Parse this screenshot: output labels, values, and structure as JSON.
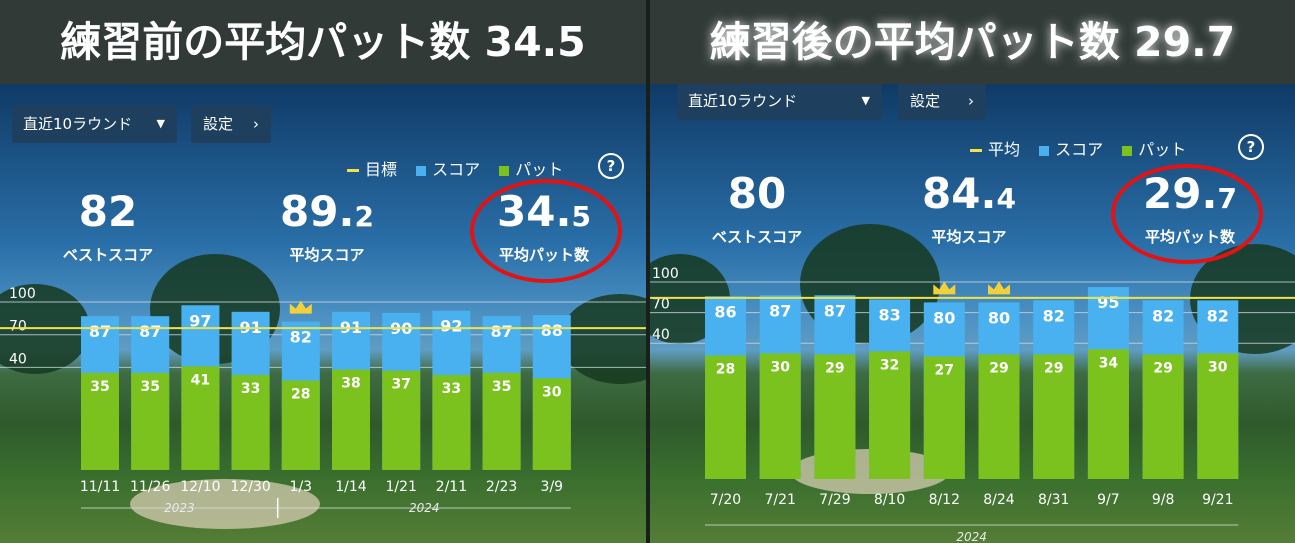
{
  "colors": {
    "score": "#4ab1f0",
    "putts": "#7cc21e",
    "target_line": "#f2e24a",
    "circle": "#e31313",
    "gridline": "#cfd8e0"
  },
  "left": {
    "banner": "練習前の平均パット数  34.5",
    "dropdown": {
      "label": "直近10ラウンド",
      "caret": "▼"
    },
    "settings": {
      "label": "設定",
      "chevron": "›"
    },
    "legend": {
      "line": "目標",
      "score": "スコア",
      "putts": "パット"
    },
    "help": "?",
    "stats": [
      {
        "value": "82",
        "decimal": "",
        "label": "ベストスコア"
      },
      {
        "value": "89.",
        "decimal": "2",
        "label": "平均スコア"
      },
      {
        "value": "34.",
        "decimal": "5",
        "label": "平均パット数"
      }
    ],
    "crown_icon": "crown-icon",
    "chart_data": {
      "type": "bar",
      "categories": [
        "11/11",
        "11/26",
        "12/10",
        "12/30",
        "1/3",
        "1/14",
        "1/21",
        "2/11",
        "2/23",
        "3/9"
      ],
      "series": [
        {
          "name": "スコア",
          "values": [
            87,
            87,
            97,
            91,
            82,
            91,
            90,
            92,
            87,
            88
          ]
        },
        {
          "name": "パット",
          "values": [
            35,
            35,
            41,
            33,
            28,
            38,
            37,
            33,
            35,
            30
          ]
        }
      ],
      "y_ticks": [
        "100",
        "70",
        "40"
      ],
      "ylim": [
        0,
        100
      ],
      "target": 76,
      "best_index": [
        4
      ],
      "year_labels": [
        "2023",
        "2024"
      ],
      "year_split_index": 4
    }
  },
  "right": {
    "banner": "練習後の平均パット数  29.7",
    "dropdown": {
      "label": "直近10ラウンド",
      "caret": "▼"
    },
    "settings": {
      "label": "設定",
      "chevron": "›"
    },
    "legend": {
      "line": "平均",
      "score": "スコア",
      "putts": "パット"
    },
    "help": "?",
    "stats": [
      {
        "value": "80",
        "decimal": "",
        "label": "ベストスコア"
      },
      {
        "value": "84.",
        "decimal": "4",
        "label": "平均スコア"
      },
      {
        "value": "29.",
        "decimal": "7",
        "label": "平均パット数"
      }
    ],
    "crown_icon": "crown-icon",
    "chart_data": {
      "type": "bar",
      "categories": [
        "7/20",
        "7/21",
        "7/29",
        "8/10",
        "8/12",
        "8/24",
        "8/31",
        "9/7",
        "9/8",
        "9/21"
      ],
      "series": [
        {
          "name": "スコア",
          "values": [
            86,
            87,
            87,
            83,
            80,
            80,
            82,
            95,
            82,
            82
          ]
        },
        {
          "name": "パット",
          "values": [
            28,
            30,
            29,
            32,
            27,
            29,
            29,
            34,
            29,
            30
          ]
        }
      ],
      "y_ticks": [
        "100",
        "70",
        "40"
      ],
      "ylim": [
        0,
        100
      ],
      "target": 84.4,
      "best_index": [
        4,
        5
      ],
      "year_labels": [
        "2024"
      ],
      "year_split_index": null
    }
  }
}
